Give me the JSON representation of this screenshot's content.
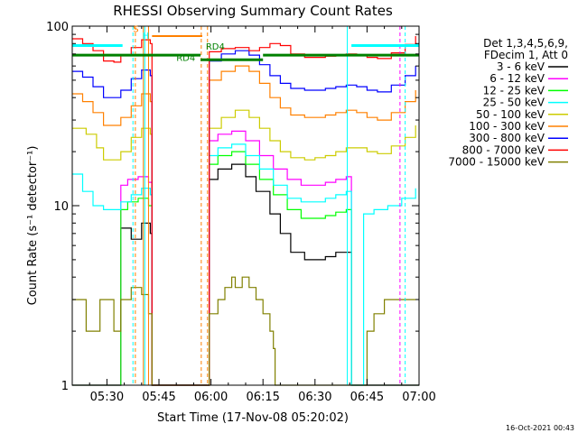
{
  "chart_data": {
    "type": "line",
    "title": "RHESSI Observing Summary Count Rates",
    "xlabel": "Start Time (17-Nov-08 05:20:02)",
    "ylabel": "Count Rate (s⁻¹ detector⁻¹)",
    "yscale": "log",
    "ylim": [
      1,
      100
    ],
    "xlim_minutes": [
      0,
      100
    ],
    "x_ticks": [
      {
        "m": 10,
        "label": "05:30"
      },
      {
        "m": 25,
        "label": "05:45"
      },
      {
        "m": 40,
        "label": "06:00"
      },
      {
        "m": 55,
        "label": "06:15"
      },
      {
        "m": 70,
        "label": "06:30"
      },
      {
        "m": 85,
        "label": "06:45"
      },
      {
        "m": 100,
        "label": "07:00"
      }
    ],
    "y_ticks": [
      {
        "v": 1,
        "label": "1"
      },
      {
        "v": 10,
        "label": "10"
      },
      {
        "v": 100,
        "label": "100"
      }
    ],
    "legend_header": [
      "Det 1,3,4,5,6,9,",
      "FDecim 1, Att 0"
    ],
    "series": [
      {
        "name": "3 - 6 keV",
        "color": "#000000",
        "points": [
          [
            0,
            1
          ],
          [
            13.5,
            1
          ],
          [
            14,
            7.5
          ],
          [
            17,
            6.5
          ],
          [
            20,
            8
          ],
          [
            22.5,
            7
          ],
          [
            23,
            1
          ],
          [
            38,
            1
          ],
          [
            39.5,
            14
          ],
          [
            42,
            16
          ],
          [
            46,
            17
          ],
          [
            50,
            14.5
          ],
          [
            53,
            12
          ],
          [
            57,
            9
          ],
          [
            60,
            7
          ],
          [
            63,
            5.5
          ],
          [
            67,
            5
          ],
          [
            70,
            5
          ],
          [
            73,
            5.2
          ],
          [
            76,
            5.5
          ],
          [
            79,
            5.5
          ],
          [
            80,
            5.5
          ],
          [
            80.5,
            1
          ],
          [
            100,
            1
          ]
        ]
      },
      {
        "name": "6 - 12 keV",
        "color": "#ff00ff",
        "points": [
          [
            0,
            1
          ],
          [
            13.5,
            1
          ],
          [
            14,
            13
          ],
          [
            16,
            14
          ],
          [
            19,
            14.5
          ],
          [
            22,
            13.5
          ],
          [
            23,
            1
          ],
          [
            38,
            1
          ],
          [
            39.5,
            23
          ],
          [
            42,
            25
          ],
          [
            46,
            26
          ],
          [
            50,
            23
          ],
          [
            54,
            19
          ],
          [
            58,
            16
          ],
          [
            62,
            14
          ],
          [
            66,
            13
          ],
          [
            70,
            13
          ],
          [
            73,
            13.5
          ],
          [
            76,
            14
          ],
          [
            79,
            14.5
          ],
          [
            80,
            14.5
          ],
          [
            80.5,
            1
          ],
          [
            100,
            1
          ]
        ]
      },
      {
        "name": "12 - 25 keV",
        "color": "#00ff00",
        "points": [
          [
            0,
            1
          ],
          [
            13.5,
            1
          ],
          [
            14,
            9.5
          ],
          [
            16,
            10.5
          ],
          [
            19,
            11
          ],
          [
            22,
            10
          ],
          [
            23,
            1
          ],
          [
            38,
            1
          ],
          [
            39.5,
            17
          ],
          [
            42,
            19
          ],
          [
            46,
            20
          ],
          [
            50,
            17
          ],
          [
            54,
            14
          ],
          [
            58,
            11.5
          ],
          [
            62,
            9.5
          ],
          [
            66,
            8.5
          ],
          [
            70,
            8.5
          ],
          [
            73,
            8.8
          ],
          [
            76,
            9.2
          ],
          [
            79,
            9.5
          ],
          [
            80,
            9.5
          ],
          [
            80.5,
            1
          ],
          [
            100,
            1
          ]
        ]
      },
      {
        "name": "25 - 50 keV",
        "color": "#00ffff",
        "points": [
          [
            0,
            15
          ],
          [
            3,
            12
          ],
          [
            6,
            10
          ],
          [
            9,
            9.5
          ],
          [
            12,
            9.5
          ],
          [
            14,
            10.5
          ],
          [
            17,
            11.5
          ],
          [
            20,
            12.5
          ],
          [
            22.5,
            11.5
          ],
          [
            23,
            1
          ],
          [
            38,
            1
          ],
          [
            39.5,
            19
          ],
          [
            42,
            21
          ],
          [
            46,
            22
          ],
          [
            50,
            19
          ],
          [
            54,
            16
          ],
          [
            58,
            13
          ],
          [
            62,
            11
          ],
          [
            66,
            10.5
          ],
          [
            70,
            10.5
          ],
          [
            73,
            11
          ],
          [
            76,
            11.5
          ],
          [
            79,
            12
          ],
          [
            80,
            12
          ],
          [
            80.5,
            1
          ],
          [
            83,
            1
          ],
          [
            84,
            9
          ],
          [
            87,
            9.5
          ],
          [
            91,
            10
          ],
          [
            95,
            11
          ],
          [
            99,
            12.5
          ]
        ]
      },
      {
        "name": "50 - 100 keV",
        "color": "#cccc00",
        "points": [
          [
            0,
            27
          ],
          [
            4,
            25
          ],
          [
            7,
            21
          ],
          [
            9,
            18
          ],
          [
            12,
            18
          ],
          [
            14,
            20
          ],
          [
            17,
            24
          ],
          [
            20,
            27
          ],
          [
            22.5,
            25
          ],
          [
            23,
            1
          ],
          [
            38,
            1
          ],
          [
            39.5,
            27
          ],
          [
            43,
            31
          ],
          [
            47,
            34
          ],
          [
            51,
            31
          ],
          [
            54,
            27
          ],
          [
            57,
            23
          ],
          [
            60,
            20
          ],
          [
            63,
            18.5
          ],
          [
            67,
            18
          ],
          [
            70,
            18.5
          ],
          [
            73,
            19
          ],
          [
            76,
            20
          ],
          [
            79,
            21
          ],
          [
            82,
            21
          ],
          [
            85,
            20
          ],
          [
            88,
            19.5
          ],
          [
            92,
            21.5
          ],
          [
            96,
            24
          ],
          [
            99,
            28
          ]
        ]
      },
      {
        "name": "100 - 300 keV",
        "color": "#ff8000",
        "points": [
          [
            0,
            42
          ],
          [
            3,
            38
          ],
          [
            6,
            33
          ],
          [
            9,
            28
          ],
          [
            12,
            28
          ],
          [
            14,
            31
          ],
          [
            17,
            36
          ],
          [
            20,
            42
          ],
          [
            22.5,
            38
          ],
          [
            23,
            1
          ],
          [
            38,
            1
          ],
          [
            39.5,
            50
          ],
          [
            43,
            56
          ],
          [
            47,
            60
          ],
          [
            51,
            56
          ],
          [
            54,
            48
          ],
          [
            57,
            40
          ],
          [
            60,
            35
          ],
          [
            63,
            32
          ],
          [
            67,
            31
          ],
          [
            70,
            31
          ],
          [
            73,
            32
          ],
          [
            76,
            33
          ],
          [
            79,
            34
          ],
          [
            82,
            33
          ],
          [
            85,
            31
          ],
          [
            88,
            30
          ],
          [
            92,
            33
          ],
          [
            96,
            38
          ],
          [
            99,
            44
          ]
        ]
      },
      {
        "name": "300 - 800 keV",
        "color": "#0000ff",
        "points": [
          [
            0,
            56
          ],
          [
            3,
            52
          ],
          [
            6,
            46
          ],
          [
            9,
            40
          ],
          [
            12,
            40
          ],
          [
            14,
            44
          ],
          [
            17,
            51
          ],
          [
            20,
            57
          ],
          [
            22.5,
            53
          ],
          [
            23,
            1
          ],
          [
            38,
            1
          ],
          [
            39.5,
            64
          ],
          [
            43,
            70
          ],
          [
            47,
            73
          ],
          [
            51,
            69
          ],
          [
            54,
            61
          ],
          [
            57,
            53
          ],
          [
            60,
            48
          ],
          [
            63,
            45
          ],
          [
            67,
            44
          ],
          [
            70,
            44
          ],
          [
            73,
            45
          ],
          [
            76,
            46
          ],
          [
            79,
            47
          ],
          [
            82,
            46
          ],
          [
            85,
            44
          ],
          [
            88,
            43
          ],
          [
            92,
            47
          ],
          [
            96,
            53
          ],
          [
            99,
            60
          ]
        ]
      },
      {
        "name": "800 - 7000 keV",
        "color": "#ff0000",
        "points": [
          [
            0,
            85
          ],
          [
            3,
            80
          ],
          [
            6,
            73
          ],
          [
            9,
            64
          ],
          [
            12,
            63
          ],
          [
            14,
            69
          ],
          [
            17,
            76
          ],
          [
            20,
            84
          ],
          [
            22.5,
            80
          ],
          [
            23,
            1
          ],
          [
            38,
            1
          ],
          [
            39.5,
            72
          ],
          [
            43,
            75
          ],
          [
            47,
            76
          ],
          [
            51,
            73
          ],
          [
            54,
            76
          ],
          [
            57,
            80
          ],
          [
            60,
            78
          ],
          [
            63,
            70
          ],
          [
            67,
            67
          ],
          [
            70,
            67
          ],
          [
            73,
            68
          ],
          [
            76,
            69
          ],
          [
            79,
            70
          ],
          [
            82,
            69
          ],
          [
            85,
            67
          ],
          [
            88,
            66
          ],
          [
            92,
            71
          ],
          [
            96,
            79
          ],
          [
            99,
            88
          ]
        ]
      },
      {
        "name": "7000 - 15000 keV",
        "color": "#808000",
        "points": [
          [
            0,
            3
          ],
          [
            3,
            3
          ],
          [
            4,
            2
          ],
          [
            7,
            2
          ],
          [
            8,
            3
          ],
          [
            10,
            3
          ],
          [
            12,
            2
          ],
          [
            14,
            3
          ],
          [
            17,
            3.5
          ],
          [
            20,
            3.2
          ],
          [
            22,
            2.5
          ],
          [
            23,
            1
          ],
          [
            38,
            1
          ],
          [
            39.5,
            2.5
          ],
          [
            42,
            3
          ],
          [
            44,
            3.5
          ],
          [
            46,
            4
          ],
          [
            47,
            3.5
          ],
          [
            49,
            4
          ],
          [
            51,
            3.5
          ],
          [
            53,
            3
          ],
          [
            55,
            2.5
          ],
          [
            57,
            2
          ],
          [
            58,
            1.6
          ],
          [
            58.5,
            1
          ],
          [
            84,
            1
          ],
          [
            85,
            2
          ],
          [
            87,
            2.5
          ],
          [
            90,
            3
          ],
          [
            93,
            3
          ],
          [
            96,
            3
          ],
          [
            99,
            3
          ]
        ]
      }
    ],
    "annotations": [
      {
        "text": "S",
        "color": "#ff8000",
        "m": 17.5,
        "v": 93
      },
      {
        "text": "H",
        "color": "#00ffff",
        "m": 20.2,
        "v": 85
      },
      {
        "text": "RD4",
        "color": "#008000",
        "m": 30,
        "v": 64
      },
      {
        "text": "RD4",
        "color": "#008000",
        "m": 38.5,
        "v": 74
      }
    ]
  },
  "footer": {
    "timestamp": "16-Oct-2021 00:43"
  }
}
